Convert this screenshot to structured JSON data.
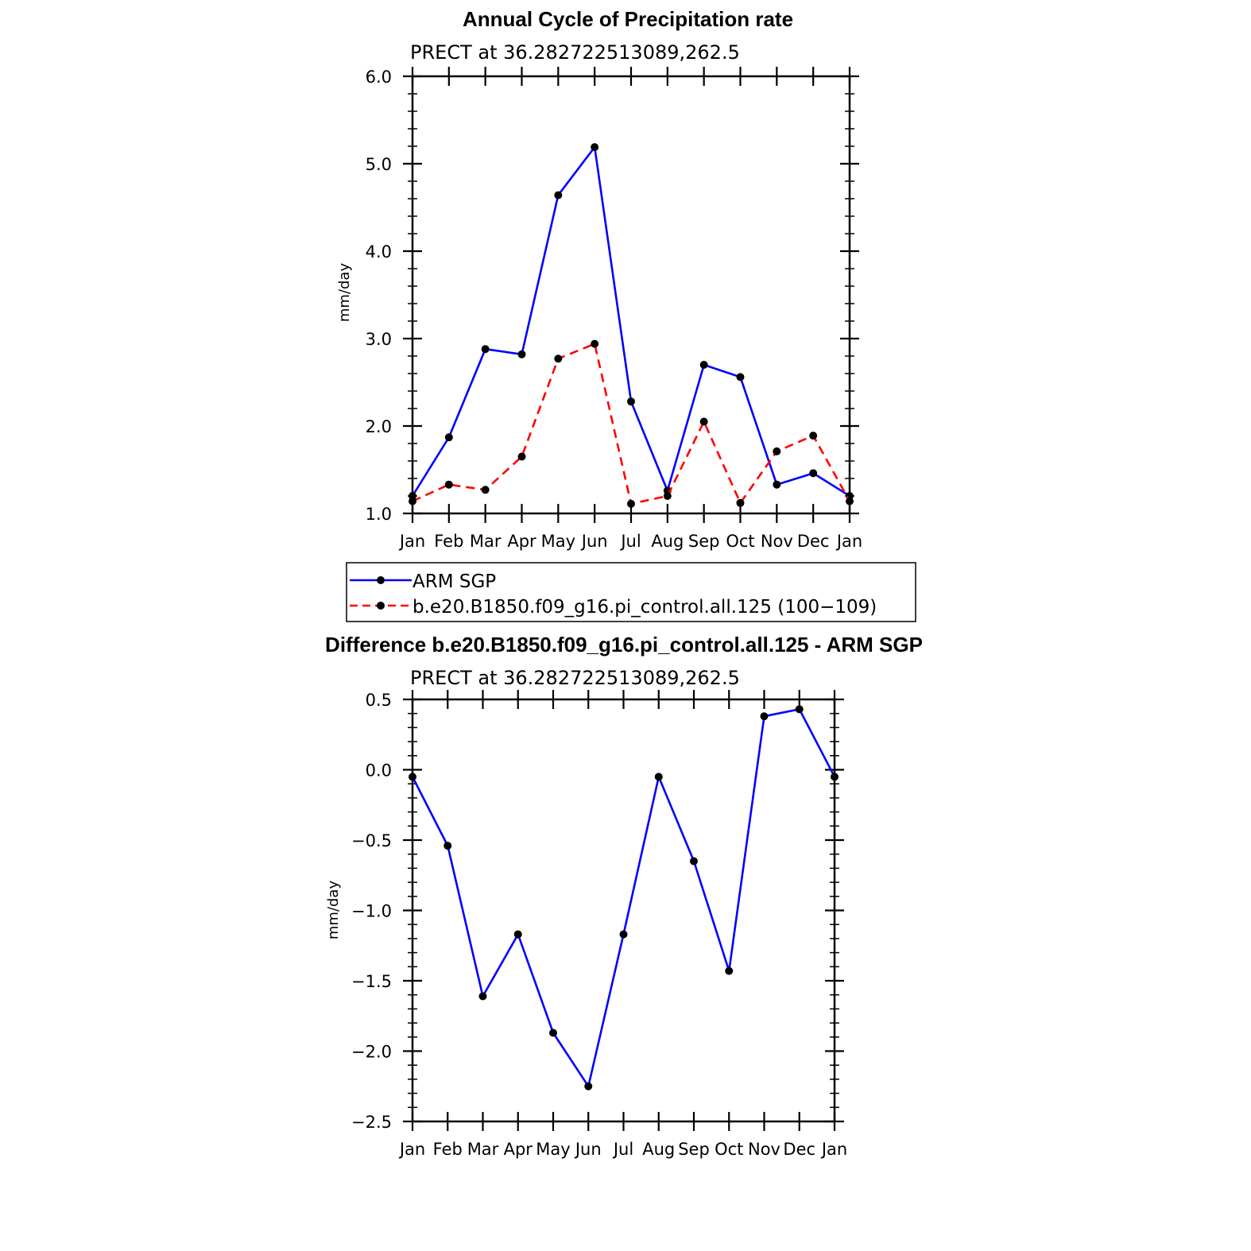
{
  "chart_data": [
    {
      "type": "line",
      "title": "Annual Cycle of Precipitation rate",
      "subtitle": "PRECT at 36.282722513089,262.5",
      "xlabel": "",
      "ylabel": "mm/day",
      "categories": [
        "Jan",
        "Feb",
        "Mar",
        "Apr",
        "May",
        "Jun",
        "Jul",
        "Aug",
        "Sep",
        "Oct",
        "Nov",
        "Dec",
        "Jan"
      ],
      "ylim": [
        1.0,
        6.0
      ],
      "yticks": [
        "1.0",
        "2.0",
        "3.0",
        "4.0",
        "5.0",
        "6.0"
      ],
      "series": [
        {
          "name": "ARM SGP",
          "color": "#0000ff",
          "dash": "solid",
          "values": [
            1.2,
            1.87,
            2.88,
            2.82,
            4.64,
            5.19,
            2.28,
            1.26,
            2.7,
            2.56,
            1.33,
            1.46,
            1.2
          ]
        },
        {
          "name": "b.e20.B1850.f09_g16.pi_control.all.125 (100−109)",
          "color": "#ff0000",
          "dash": "dashed",
          "values": [
            1.14,
            1.33,
            1.27,
            1.65,
            2.77,
            2.94,
            1.11,
            1.2,
            2.05,
            1.12,
            1.71,
            1.89,
            1.14
          ]
        }
      ],
      "legend": "below"
    },
    {
      "type": "line",
      "title": "Difference b.e20.B1850.f09_g16.pi_control.all.125 - ARM SGP",
      "subtitle": "PRECT at 36.282722513089,262.5",
      "xlabel": "",
      "ylabel": "mm/day",
      "categories": [
        "Jan",
        "Feb",
        "Mar",
        "Apr",
        "May",
        "Jun",
        "Jul",
        "Aug",
        "Sep",
        "Oct",
        "Nov",
        "Dec",
        "Jan"
      ],
      "ylim": [
        -2.5,
        0.5
      ],
      "yticks": [
        "−2.5",
        "−2.0",
        "−1.5",
        "−1.0",
        "−0.5",
        "0.0",
        "0.5"
      ],
      "series": [
        {
          "color": "#0000ff",
          "dash": "solid",
          "values": [
            -0.05,
            -0.54,
            -1.61,
            -1.17,
            -1.87,
            -2.25,
            -1.17,
            -0.05,
            -0.65,
            -1.43,
            0.38,
            0.43,
            -0.05
          ]
        }
      ]
    }
  ]
}
